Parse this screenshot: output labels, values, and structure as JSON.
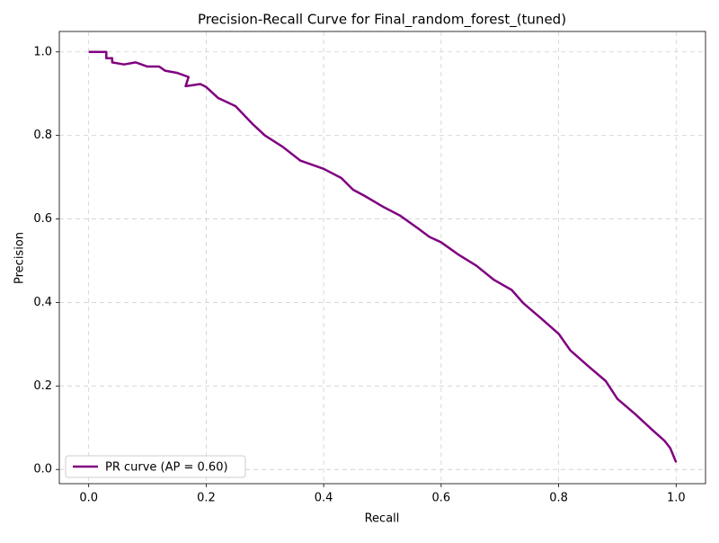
{
  "chart_data": {
    "type": "line",
    "title": "Precision-Recall Curve for Final_random_forest_(tuned)",
    "xlabel": "Recall",
    "ylabel": "Precision",
    "x": [
      0,
      0.03,
      0.03,
      0.04,
      0.04,
      0.06,
      0.08,
      0.1,
      0.12,
      0.13,
      0.15,
      0.17,
      0.165,
      0.19,
      0.2,
      0.22,
      0.25,
      0.28,
      0.3,
      0.33,
      0.36,
      0.4,
      0.43,
      0.45,
      0.47,
      0.5,
      0.53,
      0.56,
      0.58,
      0.6,
      0.63,
      0.66,
      0.69,
      0.72,
      0.74,
      0.77,
      0.8,
      0.82,
      0.85,
      0.88,
      0.9,
      0.93,
      0.96,
      0.98,
      0.99,
      1.0
    ],
    "series": [
      {
        "name": "PR curve (AP = 0.60)",
        "color": "#800080",
        "values": [
          1.0,
          1.0,
          0.985,
          0.985,
          0.975,
          0.97,
          0.975,
          0.965,
          0.965,
          0.955,
          0.95,
          0.94,
          0.918,
          0.923,
          0.916,
          0.89,
          0.87,
          0.826,
          0.8,
          0.773,
          0.74,
          0.72,
          0.698,
          0.67,
          0.655,
          0.63,
          0.608,
          0.578,
          0.557,
          0.544,
          0.514,
          0.488,
          0.454,
          0.43,
          0.398,
          0.362,
          0.325,
          0.285,
          0.248,
          0.212,
          0.169,
          0.133,
          0.094,
          0.069,
          0.051,
          0.017
        ]
      }
    ],
    "xlim": [
      -0.05,
      1.05
    ],
    "ylim": [
      -0.034,
      1.049
    ],
    "xticks": [
      {
        "value": 0,
        "label": "0.0"
      },
      {
        "value": 0.2,
        "label": "0.2"
      },
      {
        "value": 0.4,
        "label": "0.4"
      },
      {
        "value": 0.6,
        "label": "0.6"
      },
      {
        "value": 0.8,
        "label": "0.8"
      },
      {
        "value": 1,
        "label": "1.0"
      }
    ],
    "yticks": [
      {
        "value": 0,
        "label": "0.0"
      },
      {
        "value": 0.2,
        "label": "0.2"
      },
      {
        "value": 0.4,
        "label": "0.4"
      },
      {
        "value": 0.6,
        "label": "0.6"
      },
      {
        "value": 0.8,
        "label": "0.8"
      },
      {
        "value": 1,
        "label": "1.0"
      }
    ],
    "grid": true,
    "legend": "lower left"
  }
}
